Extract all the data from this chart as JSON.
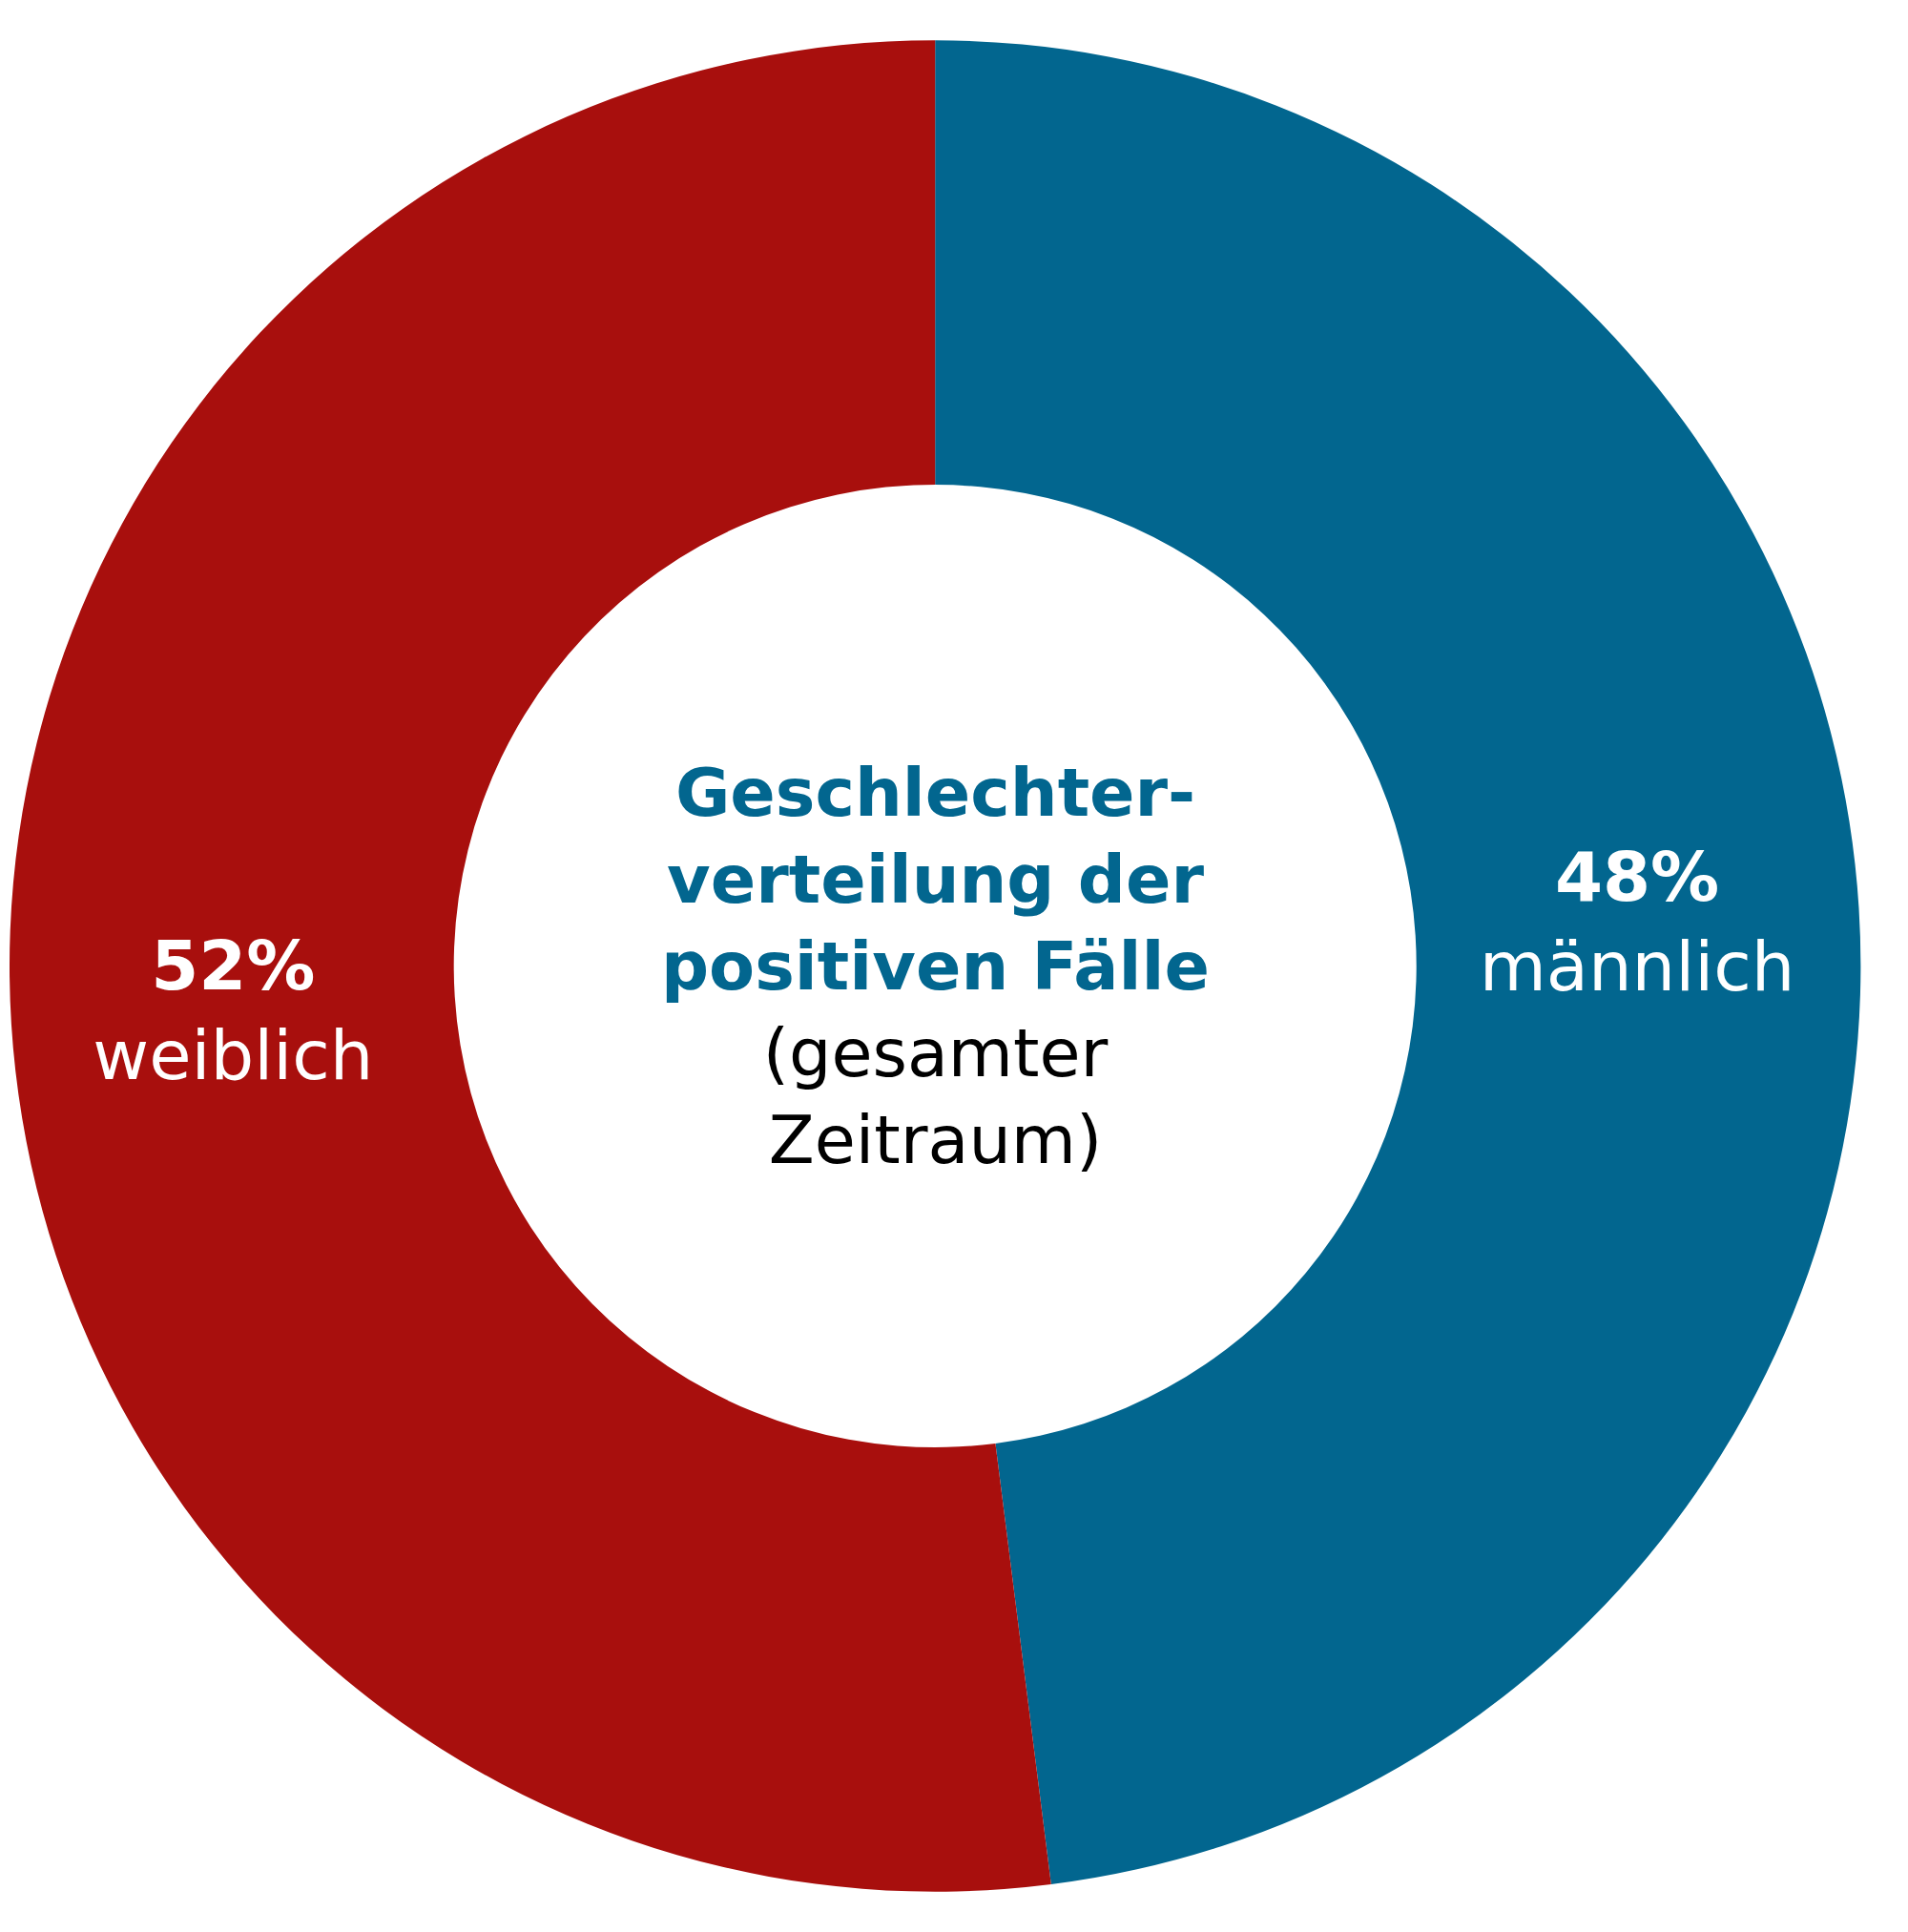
{
  "chart_data": {
    "type": "donut",
    "title": "Geschlechter-verteilung der positiven Fälle",
    "subtitle": "(gesamter Zeitraum)",
    "categories": [
      "männlich",
      "weiblich"
    ],
    "values": [
      48,
      52
    ],
    "value_labels": [
      "48%",
      "52%"
    ],
    "colors": [
      "#02668f",
      "#a80f0d"
    ],
    "legend": false
  }
}
